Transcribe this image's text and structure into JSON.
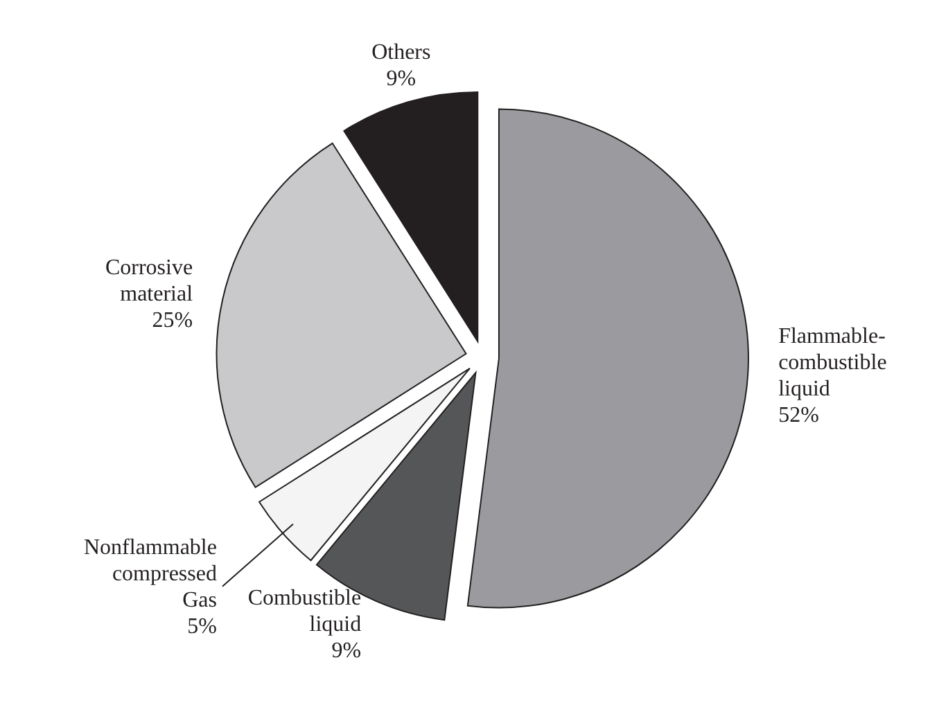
{
  "chart_data": {
    "type": "pie",
    "categories": [
      "Flammable-combustible liquid",
      "Combustible liquid",
      "Nonflammable compressed Gas",
      "Corrosive material",
      "Others"
    ],
    "values": [
      52,
      9,
      5,
      25,
      9
    ],
    "value_labels": [
      "52%",
      "9%",
      "5%",
      "25%",
      "9%"
    ],
    "colors": [
      "#9b9b9f",
      "#555658",
      "#f4f4f4",
      "#c9c9cb",
      "#231f20"
    ]
  }
}
